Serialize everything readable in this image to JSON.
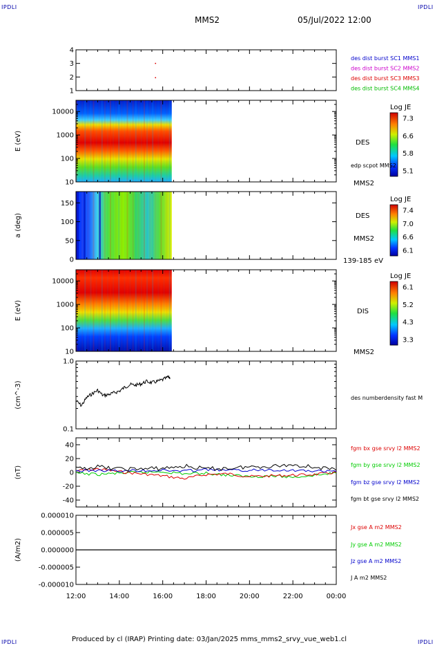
{
  "header": {
    "logo_left": "IPDLI",
    "logo_right": "IPDLI",
    "spacecraft": "MMS2",
    "datetime": "05/Jul/2022 12:00"
  },
  "footer": {
    "text": "Produced by cl (IRAP)   Printing date: 03/Jan/2025   mms_mms2_srvy_vue_web1.cl",
    "logo_left": "IPDLI",
    "logo_right": "IPDLI"
  },
  "colors": {
    "sc1": "#0000cc",
    "sc2": "#cc00cc",
    "sc3": "#dd0000",
    "sc4": "#00bb00",
    "bx": "#dd0000",
    "by": "#00cc00",
    "bz": "#0000cc",
    "bt": "#000000"
  },
  "chart_data": [
    {
      "type": "scatter",
      "panel": "spacecraft-config",
      "ylim": [
        1,
        4
      ],
      "yticks": [
        "1",
        "2",
        "3",
        "4"
      ],
      "legend": [
        {
          "label": "des dist burst SC1 MMS1",
          "color": "#0000cc"
        },
        {
          "label": "des dist burst SC2 MMS2",
          "color": "#cc00cc"
        },
        {
          "label": "des dist burst SC3 MMS3",
          "color": "#dd0000"
        },
        {
          "label": "des dist burst SC4 MMS4",
          "color": "#00bb00"
        }
      ],
      "points": [
        {
          "t": "15:40",
          "y": 3.0
        },
        {
          "t": "15:40",
          "y": 1.95
        }
      ]
    },
    {
      "type": "heatmap",
      "panel": "des-energy",
      "ylabel": "E (eV)",
      "yscale": "log",
      "ylim": [
        10,
        30000
      ],
      "yticks": [
        "10",
        "100",
        "1000",
        "10000"
      ],
      "data_end": "16:25",
      "right_labels": [
        "DES",
        "edp scpot MMS2",
        "MMS2"
      ],
      "colorbar": {
        "title": "Log JE",
        "ticks": [
          "7.3",
          "6.6",
          "5.8",
          "5.1"
        ]
      }
    },
    {
      "type": "heatmap",
      "panel": "des-pitch",
      "ylabel": "a (deg)",
      "ylim": [
        0,
        180
      ],
      "yticks": [
        "0",
        "50",
        "100",
        "150"
      ],
      "data_end": "16:25",
      "right_labels": [
        "DES",
        "MMS2",
        "139-185 eV"
      ],
      "colorbar": {
        "title": "Log JE",
        "ticks": [
          "7.4",
          "7.0",
          "6.6",
          "6.1"
        ]
      }
    },
    {
      "type": "heatmap",
      "panel": "dis-energy",
      "ylabel": "E (eV)",
      "yscale": "log",
      "ylim": [
        10,
        30000
      ],
      "yticks": [
        "10",
        "100",
        "1000",
        "10000"
      ],
      "data_end": "16:25",
      "right_labels": [
        "DIS",
        "MMS2"
      ],
      "colorbar": {
        "title": "Log JE",
        "ticks": [
          "6.1",
          "5.2",
          "4.3",
          "3.3"
        ]
      }
    },
    {
      "type": "line",
      "panel": "density",
      "ylabel": "(cm^-3)",
      "yscale": "log",
      "ylim": [
        0.1,
        1.0
      ],
      "yticks": [
        "0.1",
        "1.0"
      ],
      "series": [
        {
          "name": "des numberdensity fast M",
          "color": "#000000",
          "x": [
            "12:00",
            "12:15",
            "12:30",
            "12:45",
            "13:00",
            "13:15",
            "13:30",
            "13:45",
            "14:00",
            "14:15",
            "14:30",
            "14:45",
            "15:00",
            "15:15",
            "15:30",
            "15:45",
            "16:00",
            "16:15",
            "16:20"
          ],
          "values": [
            0.26,
            0.22,
            0.29,
            0.33,
            0.37,
            0.31,
            0.32,
            0.34,
            0.36,
            0.41,
            0.45,
            0.44,
            0.46,
            0.5,
            0.48,
            0.5,
            0.53,
            0.58,
            0.57
          ]
        }
      ]
    },
    {
      "type": "line",
      "panel": "magnetic-field",
      "ylabel": "(nT)",
      "ylim": [
        -50,
        50
      ],
      "yticks": [
        "-40",
        "-20",
        "0",
        "20",
        "40"
      ],
      "series": [
        {
          "name": "fgm bx gse srvy l2 MMS2",
          "color": "#dd0000",
          "x": [
            "12:00",
            "13:00",
            "14:00",
            "15:00",
            "16:00",
            "17:00",
            "18:00",
            "19:00",
            "20:00",
            "21:00",
            "22:00",
            "23:00",
            "00:00"
          ],
          "values": [
            2,
            5,
            1,
            -2,
            -5,
            -9,
            -3,
            -2,
            -6,
            -5,
            -4,
            -3,
            0
          ]
        },
        {
          "name": "fgm by gse srvy l2 MMS2",
          "color": "#00cc00",
          "x": [
            "12:00",
            "13:00",
            "14:00",
            "15:00",
            "16:00",
            "17:00",
            "18:00",
            "19:00",
            "20:00",
            "21:00",
            "22:00",
            "23:00",
            "00:00"
          ],
          "values": [
            -1,
            -3,
            -1,
            0,
            1,
            -2,
            -1,
            -4,
            -6,
            -5,
            -7,
            -4,
            -1
          ]
        },
        {
          "name": "fgm bz gse srvy l2 MMS2",
          "color": "#0000cc",
          "x": [
            "12:00",
            "13:00",
            "14:00",
            "15:00",
            "16:00",
            "17:00",
            "18:00",
            "19:00",
            "20:00",
            "21:00",
            "22:00",
            "23:00",
            "00:00"
          ],
          "values": [
            2,
            3,
            2,
            3,
            3,
            2,
            4,
            3,
            3,
            4,
            3,
            2,
            1
          ]
        },
        {
          "name": "fgm bt gse srvy l2 MMS2",
          "color": "#000000",
          "x": [
            "12:00",
            "13:00",
            "14:00",
            "15:00",
            "16:00",
            "17:00",
            "18:00",
            "19:00",
            "20:00",
            "21:00",
            "22:00",
            "23:00",
            "00:00"
          ],
          "values": [
            5,
            8,
            5,
            5,
            6,
            9,
            5,
            6,
            8,
            9,
            11,
            8,
            3
          ]
        }
      ]
    },
    {
      "type": "line",
      "panel": "current-density",
      "ylabel": "(A/m2)",
      "ylim": [
        -1e-05,
        1e-05
      ],
      "yticks": [
        "-0.000010",
        "-0.000005",
        "0.000000",
        "0.000005",
        "0.000010"
      ],
      "series": [
        {
          "name": "Jx gse A m2 MMS2",
          "color": "#dd0000",
          "x": [
            "12:00",
            "00:00"
          ],
          "values": [
            0,
            0
          ]
        },
        {
          "name": "Jy gse A m2 MMS2",
          "color": "#00cc00",
          "x": [
            "12:00",
            "00:00"
          ],
          "values": [
            0,
            0
          ]
        },
        {
          "name": "Jz gse A m2 MMS2",
          "color": "#0000cc",
          "x": [
            "12:00",
            "00:00"
          ],
          "values": [
            0,
            0
          ]
        },
        {
          "name": "J A m2 MMS2",
          "color": "#000000",
          "x": [
            "12:00",
            "00:00"
          ],
          "values": [
            0,
            0
          ]
        }
      ]
    }
  ],
  "time_axis": {
    "range": [
      "12:00",
      "00:00"
    ],
    "ticks": [
      "12:00",
      "14:00",
      "16:00",
      "18:00",
      "20:00",
      "22:00",
      "00:00"
    ]
  }
}
